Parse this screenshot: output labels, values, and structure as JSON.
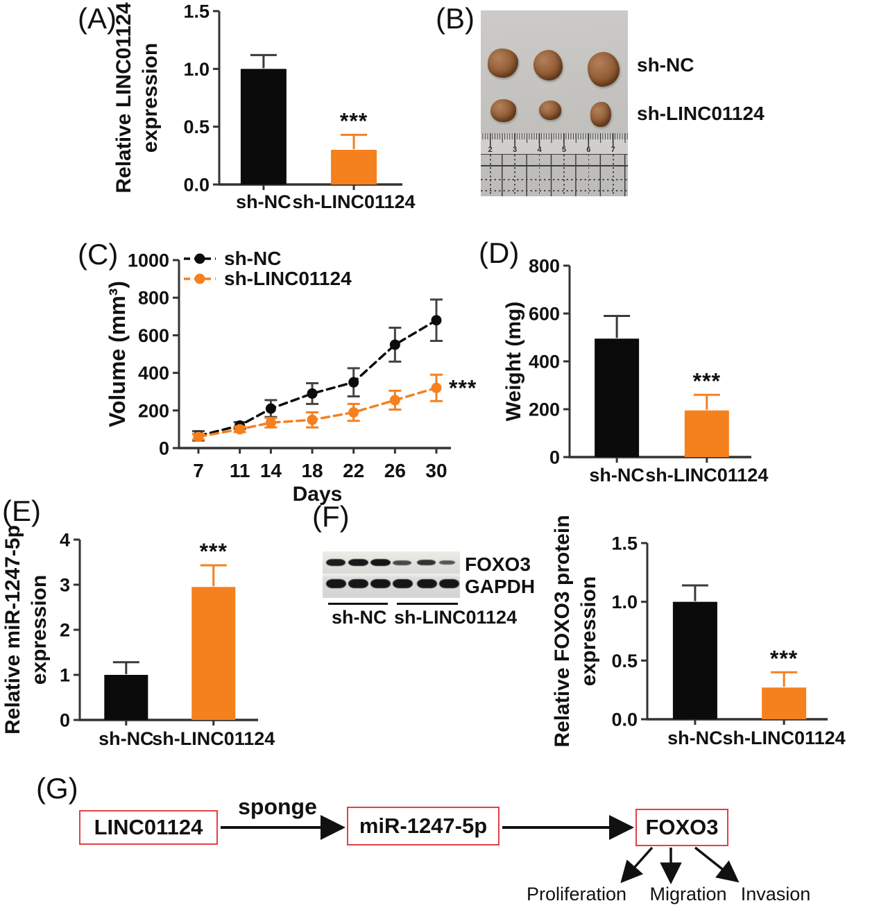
{
  "figure": {
    "panels": {
      "A": {
        "label": "(A)"
      },
      "B": {
        "label": "(B)",
        "photo": {
          "group_labels": [
            "sh-NC",
            "sh-LINC01124"
          ],
          "ruler_numbers": [
            "2",
            "3",
            "4",
            "5",
            "6",
            "7"
          ]
        }
      },
      "C": {
        "label": "(C)"
      },
      "D": {
        "label": "(D)"
      },
      "E": {
        "label": "(E)"
      },
      "F": {
        "label": "(F)",
        "blot": {
          "band_labels": [
            "FOXO3",
            "GAPDH"
          ],
          "group_labels": [
            "sh-NC",
            "sh-LINC01124"
          ],
          "lanes_per_group": 3
        }
      },
      "G": {
        "label": "(G)",
        "diagram": {
          "nodes": [
            "LINC01124",
            "miR-1247-5p",
            "FOXO3"
          ],
          "edge_label": "sponge",
          "outcomes": [
            "Proliferation",
            "Migration",
            "Invasion"
          ]
        }
      }
    }
  },
  "colors": {
    "control_black": "#0B0B0B",
    "treatment_orange": "#F5801E",
    "axis": "#333333",
    "diagram_box_border": "#E34040"
  },
  "chart_data": [
    {
      "panel": "A",
      "type": "bar",
      "categories": [
        "sh-NC",
        "sh-LINC01124"
      ],
      "values": [
        1.0,
        0.3
      ],
      "errors": [
        0.12,
        0.13
      ],
      "bar_colors": [
        "#0B0B0B",
        "#F5801E"
      ],
      "significance": [
        null,
        "***"
      ],
      "ylabel": "Relative LINC01124 expression",
      "ylabel_lines": [
        "Relative LINC01124",
        "expression"
      ],
      "ylim": [
        0,
        1.5
      ],
      "yticks": [
        0,
        0.5,
        1.0,
        1.5
      ],
      "ytick_labels": [
        "0.0",
        "0.5",
        "1.0",
        "1.5"
      ],
      "grid": false
    },
    {
      "panel": "C",
      "type": "line",
      "x": [
        7,
        11,
        14,
        18,
        22,
        26,
        30
      ],
      "xtick_labels": [
        "7",
        "11",
        "14",
        "18",
        "22",
        "26",
        "30"
      ],
      "xlabel": "Days",
      "ylabel": "Volume (mm³)",
      "ylabel_lines": [
        "Volume (mm³)"
      ],
      "ylim": [
        0,
        1000
      ],
      "yticks": [
        0,
        200,
        400,
        600,
        800,
        1000
      ],
      "ytick_labels": [
        "0",
        "200",
        "400",
        "600",
        "800",
        "1000"
      ],
      "series": [
        {
          "name": "sh-NC",
          "color": "#0B0B0B",
          "values": [
            65,
            120,
            210,
            290,
            350,
            550,
            680
          ],
          "errors": [
            25,
            18,
            45,
            55,
            75,
            90,
            110
          ]
        },
        {
          "name": "sh-LINC01124",
          "color": "#F5801E",
          "values": [
            60,
            100,
            135,
            150,
            190,
            255,
            320
          ],
          "errors": [
            15,
            15,
            25,
            40,
            45,
            50,
            70
          ]
        }
      ],
      "annotation": "***",
      "legend_position": "top-left",
      "grid": false
    },
    {
      "panel": "D",
      "type": "bar",
      "categories": [
        "sh-NC",
        "sh-LINC01124"
      ],
      "values": [
        495,
        195
      ],
      "errors": [
        95,
        65
      ],
      "bar_colors": [
        "#0B0B0B",
        "#F5801E"
      ],
      "significance": [
        null,
        "***"
      ],
      "ylabel": "Weight (mg)",
      "ylabel_lines": [
        "Weight (mg)"
      ],
      "ylim": [
        0,
        800
      ],
      "yticks": [
        0,
        200,
        400,
        600,
        800
      ],
      "ytick_labels": [
        "0",
        "200",
        "400",
        "600",
        "800"
      ],
      "grid": false
    },
    {
      "panel": "E",
      "type": "bar",
      "categories": [
        "sh-NC",
        "sh-LINC01124"
      ],
      "values": [
        1.0,
        2.95
      ],
      "errors": [
        0.28,
        0.48
      ],
      "bar_colors": [
        "#0B0B0B",
        "#F5801E"
      ],
      "significance": [
        null,
        "***"
      ],
      "ylabel": "Relative miR-1247-5p expression",
      "ylabel_lines": [
        "Relative miR-1247-5p",
        "expression"
      ],
      "ylim": [
        0,
        4
      ],
      "yticks": [
        0,
        1,
        2,
        3,
        4
      ],
      "ytick_labels": [
        "0",
        "1",
        "2",
        "3",
        "4"
      ],
      "grid": false
    },
    {
      "panel": "F",
      "type": "bar",
      "categories": [
        "sh-NC",
        "sh-LINC01124"
      ],
      "values": [
        1.0,
        0.27
      ],
      "errors": [
        0.14,
        0.13
      ],
      "bar_colors": [
        "#0B0B0B",
        "#F5801E"
      ],
      "significance": [
        null,
        "***"
      ],
      "ylabel": "Relative FOXO3 protein expression",
      "ylabel_lines": [
        "Relative FOXO3 protein",
        "expression"
      ],
      "ylim": [
        0,
        1.5
      ],
      "yticks": [
        0,
        0.5,
        1.0,
        1.5
      ],
      "ytick_labels": [
        "0.0",
        "0.5",
        "1.0",
        "1.5"
      ],
      "grid": false
    }
  ]
}
